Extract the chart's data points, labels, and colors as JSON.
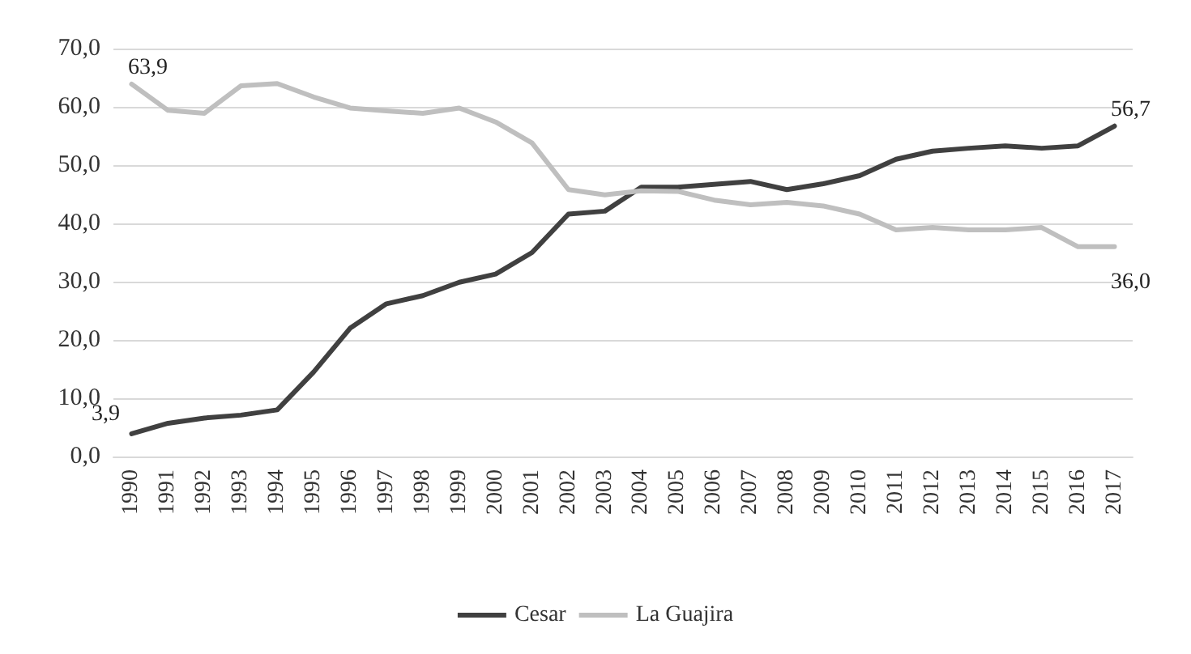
{
  "chart_data": {
    "type": "line",
    "categories": [
      "1990",
      "1991",
      "1992",
      "1993",
      "1994",
      "1995",
      "1996",
      "1997",
      "1998",
      "1999",
      "2000",
      "2001",
      "2002",
      "2003",
      "2004",
      "2005",
      "2006",
      "2007",
      "2008",
      "2009",
      "2010",
      "2011",
      "2012",
      "2013",
      "2014",
      "2015",
      "2016",
      "2017"
    ],
    "series": [
      {
        "name": "Cesar",
        "color": "#404040",
        "values": [
          3.9,
          5.7,
          6.6,
          7.1,
          8.0,
          14.5,
          22.0,
          26.2,
          27.6,
          29.9,
          31.3,
          35.0,
          41.6,
          42.1,
          46.2,
          46.2,
          46.7,
          47.2,
          45.8,
          46.8,
          48.2,
          51.0,
          52.4,
          52.9,
          53.3,
          52.9,
          53.3,
          56.7
        ],
        "value_labels": [
          "3,9",
          null,
          null,
          null,
          null,
          null,
          null,
          null,
          null,
          null,
          null,
          null,
          null,
          null,
          null,
          null,
          null,
          null,
          null,
          null,
          null,
          null,
          null,
          null,
          null,
          null,
          null,
          "56,7"
        ]
      },
      {
        "name": "La Guajira",
        "color": "#bfbfbf",
        "values": [
          63.9,
          59.4,
          58.9,
          63.6,
          64.0,
          61.7,
          59.8,
          59.3,
          58.9,
          59.8,
          57.4,
          53.8,
          45.8,
          44.9,
          45.6,
          45.5,
          44.0,
          43.2,
          43.6,
          43.0,
          41.6,
          38.9,
          39.3,
          38.9,
          38.9,
          39.3,
          36.0,
          36.0
        ],
        "value_labels": [
          "63,9",
          null,
          null,
          null,
          null,
          null,
          null,
          null,
          null,
          null,
          null,
          null,
          null,
          null,
          null,
          null,
          null,
          null,
          null,
          null,
          null,
          null,
          null,
          null,
          null,
          null,
          null,
          "36,0"
        ]
      }
    ],
    "ylim": [
      0,
      70
    ],
    "yticks": [
      {
        "value": 0,
        "label": "0,0"
      },
      {
        "value": 10,
        "label": "10,0"
      },
      {
        "value": 20,
        "label": "20,0"
      },
      {
        "value": 30,
        "label": "30,0"
      },
      {
        "value": 40,
        "label": "40,0"
      },
      {
        "value": 50,
        "label": "50,0"
      },
      {
        "value": 60,
        "label": "60,0"
      },
      {
        "value": 70,
        "label": "70,0"
      }
    ],
    "grid": "y",
    "legend": "bottom",
    "marker": "none",
    "line_style": "solid"
  }
}
